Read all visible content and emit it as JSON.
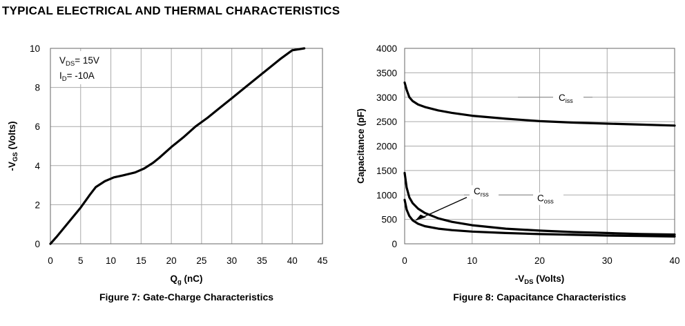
{
  "section_title": "TYPICAL ELECTRICAL AND THERMAL CHARACTERISTICS",
  "chart_data": [
    {
      "type": "line",
      "caption": "Figure 7: Gate-Charge Characteristics",
      "xlabel": {
        "main": "Q",
        "sub": "g",
        "rest": " (nC)"
      },
      "ylabel": {
        "main": "-V",
        "sub": "GS",
        "rest": " (Volts)"
      },
      "xlim": [
        0,
        45
      ],
      "ylim": [
        0,
        10
      ],
      "xticks": [
        "0",
        "5",
        "10",
        "15",
        "20",
        "25",
        "30",
        "35",
        "40",
        "45"
      ],
      "yticks": [
        "0",
        "2",
        "4",
        "6",
        "8",
        "10"
      ],
      "grid": true,
      "annotations": [
        {
          "main": "V",
          "sub": "DS",
          "rest": "= 15V"
        },
        {
          "main": "I",
          "sub": "D",
          "rest": "= -10A"
        }
      ],
      "series": [
        {
          "x": [
            0,
            1,
            3,
            5,
            6.5,
            7.5,
            9,
            10.5,
            12,
            14,
            15.5,
            17,
            18,
            20,
            22,
            24,
            26,
            28,
            30,
            32,
            34,
            36,
            38,
            40,
            42
          ],
          "y": [
            0,
            0.35,
            1.1,
            1.85,
            2.5,
            2.9,
            3.2,
            3.4,
            3.5,
            3.65,
            3.85,
            4.15,
            4.4,
            4.95,
            5.45,
            6.0,
            6.45,
            6.95,
            7.45,
            7.95,
            8.45,
            8.95,
            9.45,
            9.9,
            10.0
          ]
        }
      ]
    },
    {
      "type": "line",
      "caption": "Figure 8: Capacitance Characteristics",
      "xlabel": {
        "main": "-V",
        "sub": "DS",
        "rest": " (Volts)"
      },
      "ylabel": {
        "main": "Capacitance (pF)",
        "sub": "",
        "rest": ""
      },
      "xlim": [
        0,
        40
      ],
      "ylim": [
        0,
        4000
      ],
      "xticks": [
        "0",
        "10",
        "20",
        "30",
        "40"
      ],
      "yticks": [
        "0",
        "500",
        "1000",
        "1500",
        "2000",
        "2500",
        "3000",
        "3500",
        "4000"
      ],
      "grid": true,
      "series": [
        {
          "name": "Ciss",
          "label": {
            "main": "C",
            "sub": "iss"
          },
          "x": [
            0,
            0.3,
            0.7,
            1.2,
            2,
            3,
            5,
            7,
            10,
            15,
            20,
            25,
            30,
            35,
            40
          ],
          "y": [
            3300,
            3150,
            3000,
            2920,
            2850,
            2800,
            2730,
            2680,
            2620,
            2560,
            2510,
            2480,
            2460,
            2440,
            2420
          ]
        },
        {
          "name": "Crss",
          "label": {
            "main": "C",
            "sub": "rss"
          },
          "x": [
            0,
            0.3,
            0.7,
            1.2,
            2,
            3,
            5,
            7,
            10,
            15,
            20,
            25,
            30,
            35,
            40
          ],
          "y": [
            900,
            700,
            570,
            480,
            410,
            360,
            310,
            280,
            250,
            220,
            200,
            185,
            170,
            160,
            150
          ]
        },
        {
          "name": "Coss",
          "label": {
            "main": "C",
            "sub": "oss"
          },
          "x": [
            0,
            0.3,
            0.7,
            1.2,
            2,
            3,
            5,
            7,
            10,
            15,
            20,
            25,
            30,
            35,
            40
          ],
          "y": [
            1450,
            1150,
            950,
            830,
            720,
            630,
            520,
            450,
            380,
            310,
            270,
            240,
            220,
            200,
            190
          ]
        }
      ]
    }
  ]
}
